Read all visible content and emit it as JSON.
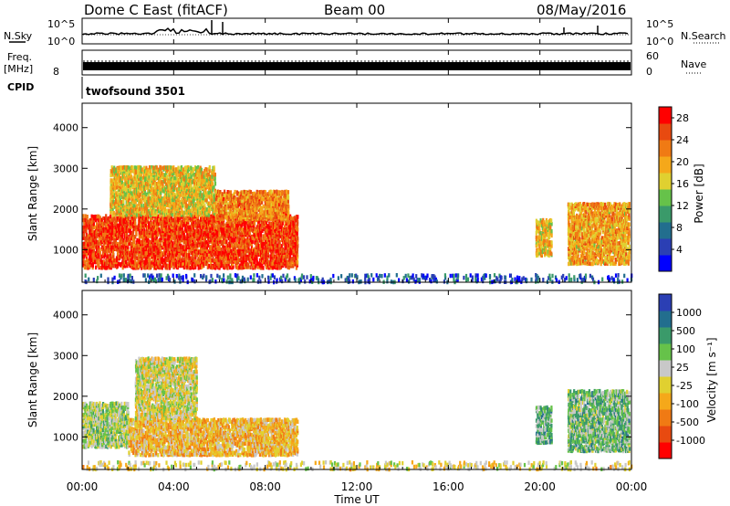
{
  "header": {
    "title": "Dome C East (fitACF)",
    "beam": "Beam 00",
    "date": "08/May/2016"
  },
  "strips": {
    "nsky_label": "N.Sky",
    "nsky_top": "10^5",
    "nsky_bottom": "10^0",
    "nsearch_label": "N.Search",
    "nsearch_top": "10^5",
    "nsearch_bottom": "10^0",
    "freq_label_1": "Freq.",
    "freq_label_2": "[MHz]",
    "freq_top": "",
    "freq_bottom": "8",
    "nave_label": "Nave",
    "nave_top": "60",
    "nave_bottom": "0",
    "cpid_label": "CPID",
    "cpid_value": "twofsound 3501"
  },
  "colors": {
    "power": [
      "#0000ff",
      "#2b3fb4",
      "#226e8e",
      "#3a9a6a",
      "#66c24a",
      "#e0d030",
      "#f5a81a",
      "#f07a14",
      "#e84a10",
      "#ff0000"
    ],
    "velocity": [
      "#ff0000",
      "#e84a10",
      "#f07a14",
      "#f5a81a",
      "#e0d030",
      "#c8c8c8",
      "#66c24a",
      "#3a9a6a",
      "#226e8e",
      "#2b3fb4"
    ]
  },
  "chart_data": [
    {
      "type": "heatmap",
      "panel": "power",
      "ylabel": "Slant Range [km]",
      "ylim": [
        200,
        4600
      ],
      "yticks": [
        "1000",
        "2000",
        "3000",
        "4000"
      ],
      "xlim_hours": [
        0,
        24
      ],
      "colorbar": {
        "label": "Power [dB]",
        "ticks": [
          "4",
          "8",
          "12",
          "16",
          "20",
          "24",
          "28"
        ],
        "range": [
          0,
          30
        ]
      },
      "regions": [
        {
          "t": [
            0.0,
            9.4
          ],
          "r": [
            600,
            1900
          ],
          "level": 26
        },
        {
          "t": [
            1.2,
            5.8
          ],
          "r": [
            1900,
            3100
          ],
          "level": 18
        },
        {
          "t": [
            5.8,
            9.0
          ],
          "r": [
            1800,
            2500
          ],
          "level": 22
        },
        {
          "t": [
            19.8,
            20.5
          ],
          "r": [
            900,
            1800
          ],
          "level": 18
        },
        {
          "t": [
            21.2,
            23.9
          ],
          "r": [
            700,
            2200
          ],
          "level": 20
        },
        {
          "t": [
            0.0,
            24.0
          ],
          "r": [
            250,
            450
          ],
          "level": 6
        }
      ]
    },
    {
      "type": "heatmap",
      "panel": "velocity",
      "ylabel": "Slant Range [km]",
      "ylim": [
        200,
        4600
      ],
      "yticks": [
        "1000",
        "2000",
        "3000",
        "4000"
      ],
      "xlim_hours": [
        0,
        24
      ],
      "xticks": [
        "00:00",
        "04:00",
        "08:00",
        "12:00",
        "16:00",
        "20:00",
        "00:00"
      ],
      "xlabel": "Time UT",
      "colorbar": {
        "label": "Velocity [m s⁻¹]",
        "ticks": [
          "1000",
          "500",
          "100",
          "25",
          "-25",
          "-100",
          "-500",
          "-1000"
        ],
        "range": [
          -1000,
          1000
        ]
      },
      "regions": [
        {
          "t": [
            0.0,
            2.0
          ],
          "r": [
            800,
            1900
          ],
          "level": 150
        },
        {
          "t": [
            2.0,
            9.4
          ],
          "r": [
            600,
            1500
          ],
          "level": -200
        },
        {
          "t": [
            2.3,
            5.0
          ],
          "r": [
            1500,
            3000
          ],
          "level": 0
        },
        {
          "t": [
            19.8,
            20.5
          ],
          "r": [
            900,
            1800
          ],
          "level": 400
        },
        {
          "t": [
            21.2,
            23.9
          ],
          "r": [
            700,
            2200
          ],
          "level": 300
        },
        {
          "t": [
            0.0,
            24.0
          ],
          "r": [
            250,
            450
          ],
          "level": -60
        }
      ]
    }
  ]
}
